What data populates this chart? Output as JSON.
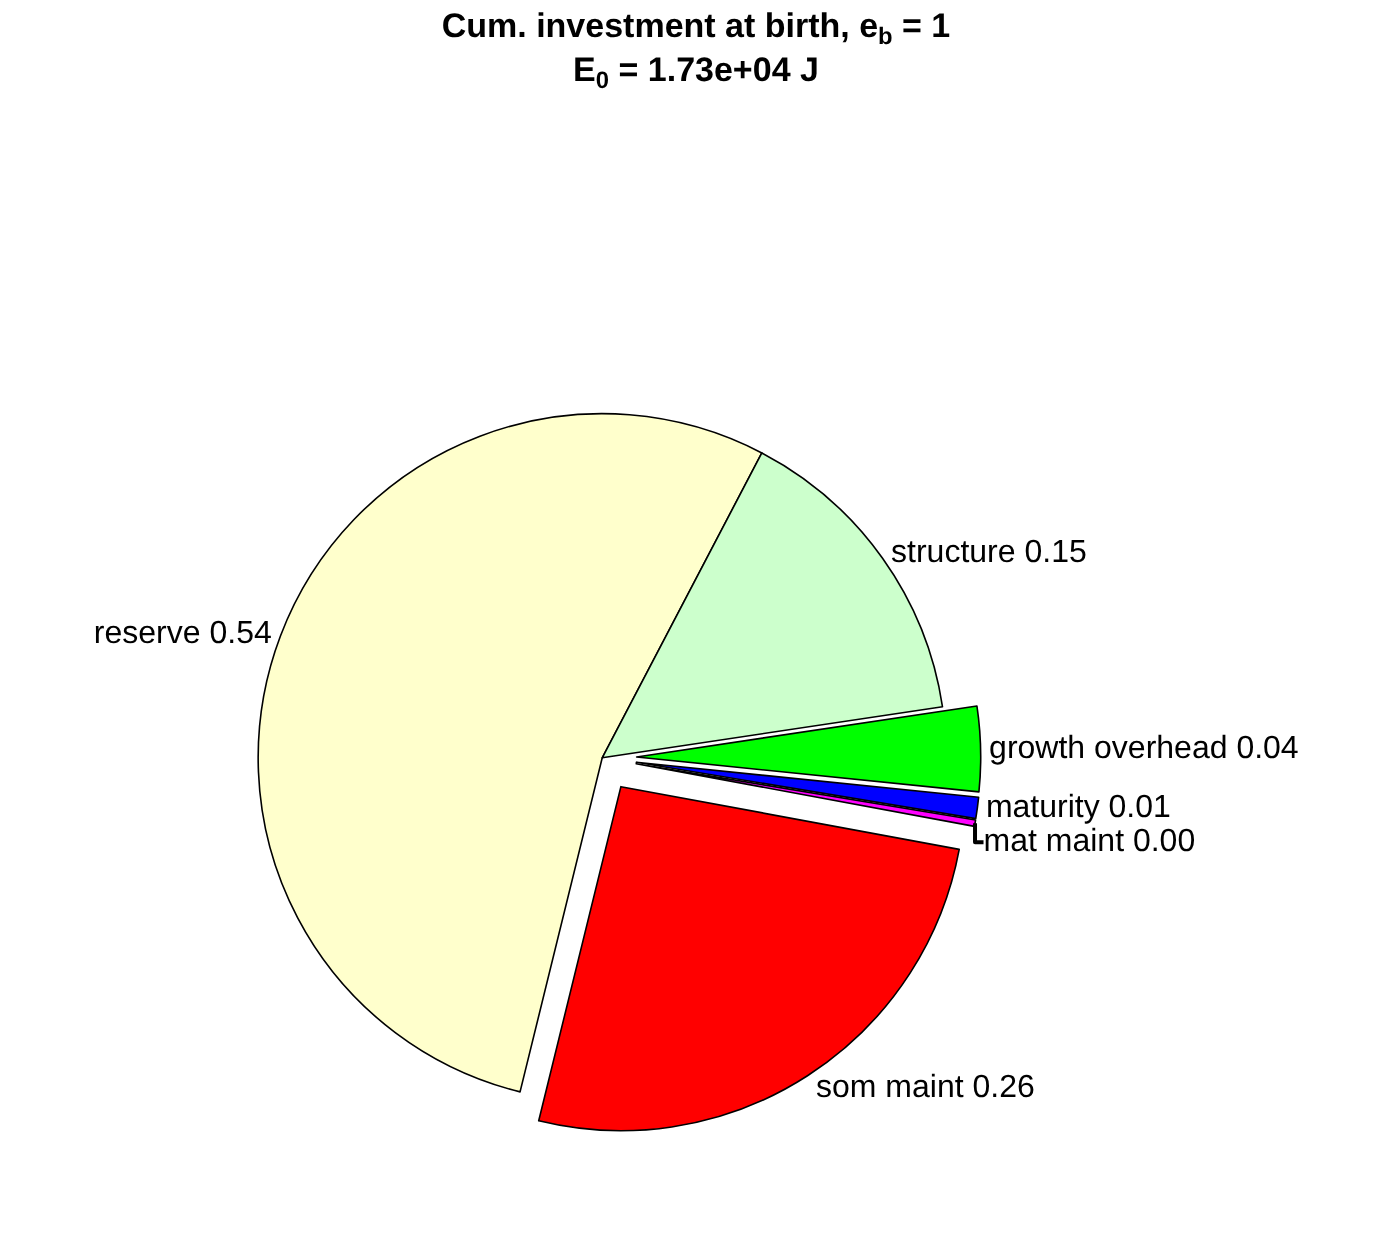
{
  "chart_data": {
    "type": "pie",
    "title": "Cum. investment at birth, e$_{b}$ = 1",
    "subtitle": "E$_{0}$ = 1.73e+04 J",
    "categories": [
      "reserve",
      "som maint",
      "mat maint",
      "maturity",
      "growth overhead",
      "structure"
    ],
    "values": [
      0.54,
      0.26,
      0.003,
      0.01,
      0.04,
      0.15
    ],
    "value_labels": [
      "0.54",
      "0.26",
      "0.00",
      "0.01",
      "0.04",
      "0.15"
    ],
    "colors": [
      "#ffffcc",
      "#ff0000",
      "#ff00ff",
      "#0000ff",
      "#00ff00",
      "#ccffcc"
    ],
    "legend": false
  }
}
